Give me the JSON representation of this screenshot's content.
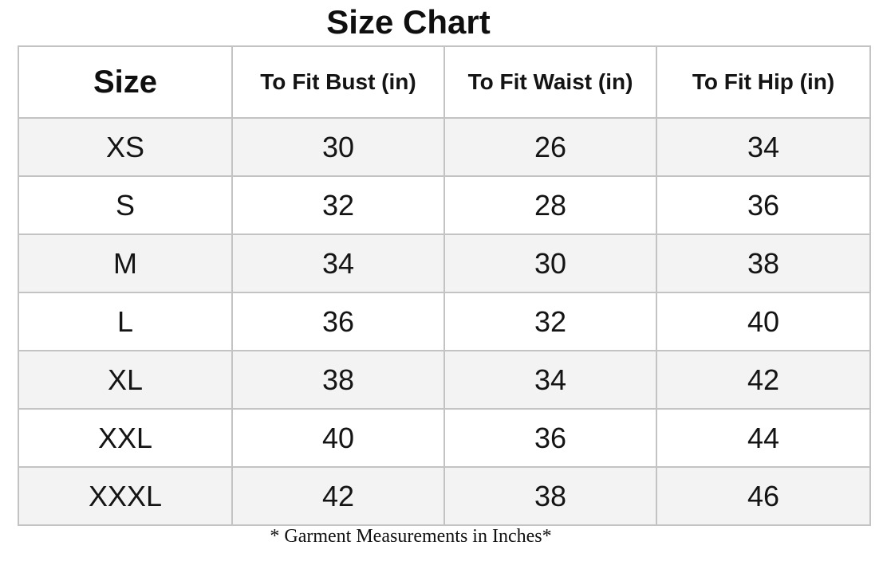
{
  "page_title": "Size Chart",
  "table": {
    "headers": [
      "Size",
      "To Fit Bust (in)",
      "To Fit Waist (in)",
      "To Fit Hip (in)"
    ],
    "rows": [
      [
        "XS",
        "30",
        "26",
        "34"
      ],
      [
        "S",
        "32",
        "28",
        "36"
      ],
      [
        "M",
        "34",
        "30",
        "38"
      ],
      [
        "L",
        "36",
        "32",
        "40"
      ],
      [
        "XL",
        "38",
        "34",
        "42"
      ],
      [
        "XXL",
        "40",
        "36",
        "44"
      ],
      [
        "XXXL",
        "42",
        "38",
        "46"
      ]
    ]
  },
  "footnote": "* Garment Measurements in Inches*",
  "colors": {
    "row_shaded": "#f3f3f3",
    "row_plain": "#ffffff",
    "border": "#c3c3c3",
    "text": "#141414"
  },
  "chart_data": {
    "type": "table",
    "title": "Size Chart",
    "columns": [
      "Size",
      "To Fit Bust (in)",
      "To Fit Waist (in)",
      "To Fit Hip (in)"
    ],
    "rows": [
      {
        "size": "XS",
        "bust": 30,
        "waist": 26,
        "hip": 34
      },
      {
        "size": "S",
        "bust": 32,
        "waist": 28,
        "hip": 36
      },
      {
        "size": "M",
        "bust": 34,
        "waist": 30,
        "hip": 38
      },
      {
        "size": "L",
        "bust": 36,
        "waist": 32,
        "hip": 40
      },
      {
        "size": "XL",
        "bust": 38,
        "waist": 34,
        "hip": 42
      },
      {
        "size": "XXL",
        "bust": 40,
        "waist": 36,
        "hip": 44
      },
      {
        "size": "XXXL",
        "bust": 42,
        "waist": 38,
        "hip": 46
      }
    ],
    "footnote": "* Garment Measurements in Inches*"
  }
}
